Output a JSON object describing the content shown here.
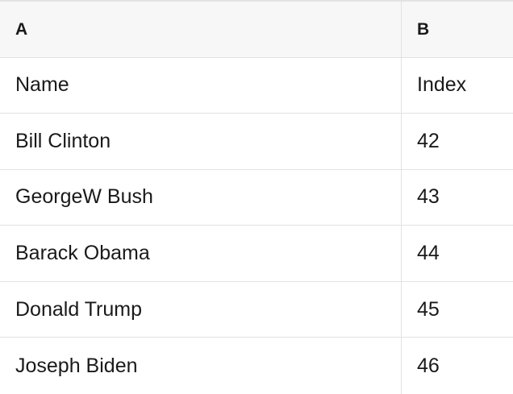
{
  "table": {
    "column_headers": [
      {
        "label": "A"
      },
      {
        "label": "B"
      }
    ],
    "rows": [
      [
        "Name",
        "Index"
      ],
      [
        "Bill Clinton",
        "42"
      ],
      [
        "GeorgeW Bush",
        "43"
      ],
      [
        "Barack Obama",
        "44"
      ],
      [
        "Donald Trump",
        "45"
      ],
      [
        "Joseph Biden",
        "46"
      ]
    ]
  },
  "colors": {
    "header_bg": "#f7f7f7",
    "cell_bg": "#ffffff",
    "grid_line": "#e2e2e2",
    "text": "#1a1a1a"
  }
}
